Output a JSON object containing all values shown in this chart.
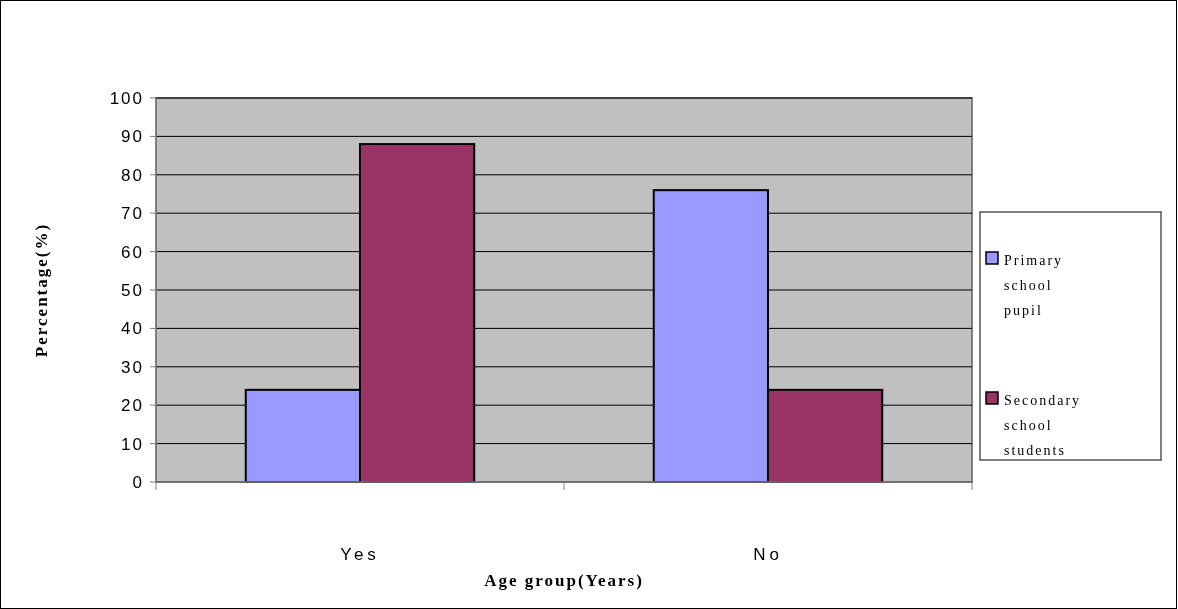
{
  "chart_data": {
    "type": "bar",
    "xlabel": "Age group(Years)",
    "ylabel": "Percentage(%)",
    "categories": [
      "Yes",
      "No"
    ],
    "series": [
      {
        "name": "Primary school pupil",
        "color": "#9999ff",
        "values": [
          24,
          76
        ]
      },
      {
        "name": "Secondary school students",
        "color": "#993366",
        "values": [
          88,
          24
        ]
      }
    ],
    "ylim": [
      0,
      100
    ],
    "yticks": [
      0,
      10,
      20,
      30,
      40,
      50,
      60,
      70,
      80,
      90,
      100
    ],
    "grid": "y",
    "legend": "right"
  }
}
